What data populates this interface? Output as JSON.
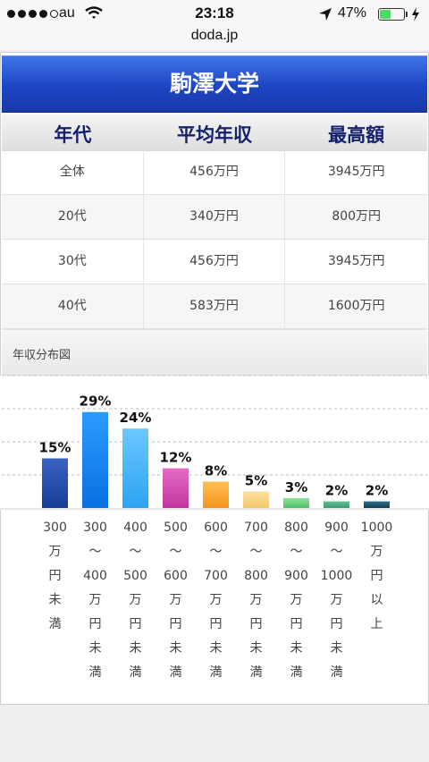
{
  "status_bar": {
    "carrier": "au",
    "time": "23:18",
    "battery_percent": "47%",
    "battery_level": 0.47
  },
  "url_bar": {
    "domain": "doda.jp"
  },
  "page": {
    "title": "駒澤大学",
    "table": {
      "headers": [
        "年代",
        "平均年収",
        "最高額"
      ],
      "rows": [
        [
          "全体",
          "456万円",
          "3945万円"
        ],
        [
          "20代",
          "340万円",
          "800万円"
        ],
        [
          "30代",
          "456万円",
          "3945万円"
        ],
        [
          "40代",
          "583万円",
          "1600万円"
        ]
      ]
    },
    "section_label": "年収分布図"
  },
  "chart_data": {
    "type": "bar",
    "categories": [
      "300\n万\n円\n未\n満",
      "300\n〜\n400\n万\n円\n未\n満",
      "400\n〜\n500\n万\n円\n未\n満",
      "500\n〜\n600\n万\n円\n未\n満",
      "600\n〜\n700\n万\n円\n未\n満",
      "700\n〜\n800\n万\n円\n未\n満",
      "800\n〜\n900\n万\n円\n未\n満",
      "900\n〜\n1000\n万\n円\n未\n満",
      "1000\n万\n円\n以\n上"
    ],
    "values": [
      15,
      29,
      24,
      12,
      8,
      5,
      3,
      2,
      2
    ],
    "value_labels": [
      "15%",
      "29%",
      "24%",
      "12%",
      "8%",
      "5%",
      "3%",
      "2%",
      "2%"
    ],
    "unit": "%",
    "ylim": [
      0,
      40
    ],
    "grid": true,
    "colors": [
      [
        "#3a61c4",
        "#173d98"
      ],
      [
        "#2b9bff",
        "#0a6fe0"
      ],
      [
        "#6cc7ff",
        "#2ba4f2"
      ],
      [
        "#e36bc5",
        "#c2369f"
      ],
      [
        "#ffbf55",
        "#f5951f"
      ],
      [
        "#ffe2a0",
        "#f4c76b"
      ],
      [
        "#8ce39b",
        "#4fbf67"
      ],
      [
        "#5fbf96",
        "#3a9d74"
      ],
      [
        "#2b6c86",
        "#123f55"
      ]
    ]
  }
}
